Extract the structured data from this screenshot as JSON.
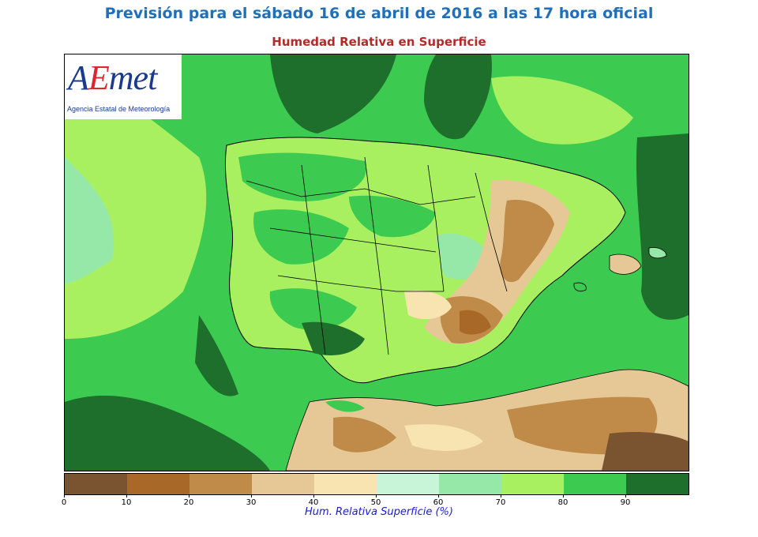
{
  "title": "Previsión para el sábado 16 de abril de 2016 a las 17 hora oficial",
  "subtitle": "Humedad Relativa en Superficie",
  "logo": {
    "word_a": "A",
    "word_e": "E",
    "word_rest": "met",
    "agency": "Agencia Estatal de Meteorología"
  },
  "colorbar": {
    "label": "Hum. Relativa Superficie (%)",
    "ticks": [
      "0",
      "10",
      "20",
      "30",
      "40",
      "50",
      "60",
      "70",
      "80",
      "90"
    ],
    "colors": [
      "#7a5430",
      "#a86828",
      "#c08a48",
      "#e6c896",
      "#f8e4b0",
      "#c8f4d8",
      "#96e8a8",
      "#a8f060",
      "#3ccb50",
      "#1e6e2c"
    ]
  },
  "map": {
    "region": "Iberian Peninsula, Balearic Islands and North Africa",
    "field": "surface relative humidity",
    "colors": {
      "very_humid": "#1e6e2c",
      "humid": "#3ccb50",
      "moderate": "#a8f060",
      "light": "#96e8a8",
      "dry_light": "#f8e4b0",
      "dry": "#e6c896",
      "drier": "#c08a48",
      "driest": "#7a5430",
      "borders": "#000000"
    }
  }
}
